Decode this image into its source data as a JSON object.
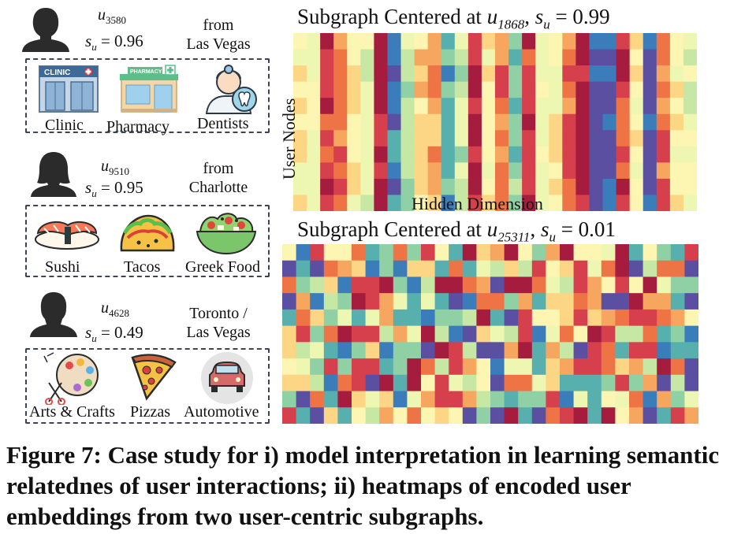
{
  "users": [
    {
      "id": "u",
      "sub": "3580",
      "score_label": "s",
      "score_sub": "u",
      "score_value": "= 0.96",
      "location": [
        "from",
        "Las Vegas"
      ],
      "categories": [
        {
          "label": "Clinic",
          "icon": "clinic-icon"
        },
        {
          "label": "Pharmacy",
          "icon": "pharmacy-icon"
        },
        {
          "label": "Dentists",
          "icon": "dentist-icon"
        }
      ]
    },
    {
      "id": "u",
      "sub": "9510",
      "score_label": "s",
      "score_sub": "u",
      "score_value": "= 0.95",
      "location": [
        "from",
        "Charlotte"
      ],
      "categories": [
        {
          "label": "Sushi",
          "icon": "sushi-icon"
        },
        {
          "label": "Tacos",
          "icon": "taco-icon"
        },
        {
          "label": "Greek Food",
          "icon": "greek-salad-icon"
        }
      ]
    },
    {
      "id": "u",
      "sub": "4628",
      "score_label": "s",
      "score_sub": "u",
      "score_value": "= 0.49",
      "location": [
        "Toronto /",
        "Las Vegas"
      ],
      "categories": [
        {
          "label": "Arts & Crafts",
          "icon": "palette-icon"
        },
        {
          "label": "Pizzas",
          "icon": "pizza-icon"
        },
        {
          "label": "Automotive",
          "icon": "car-icon"
        }
      ]
    }
  ],
  "heatmaps": [
    {
      "title_prefix": "Subgraph Centered at ",
      "node": "u",
      "node_sub": "1868",
      "sep": ", ",
      "score_label": "s",
      "score_sub": "u",
      "score_value": " = 0.99",
      "xlabel": "Hidden Dimension",
      "ylabel": "User Nodes",
      "rows": 11,
      "cols": 30,
      "pattern": "structured"
    },
    {
      "title_prefix": "Subgraph Centered at ",
      "node": "u",
      "node_sub": "25311",
      "sep": ", ",
      "score_label": "s",
      "score_sub": "u",
      "score_value": " = 0.01",
      "xlabel": "",
      "ylabel": "",
      "rows": 11,
      "cols": 30,
      "pattern": "random"
    }
  ],
  "colors": {
    "palette": [
      "#a51c3f",
      "#d6404d",
      "#ee7446",
      "#f6a65e",
      "#fcd585",
      "#fdf5b2",
      "#eef7b1",
      "#c6e8a4",
      "#8fd0a4",
      "#57b0ad",
      "#3a7dba",
      "#5a4fa1"
    ]
  },
  "caption": "Figure 7: Case study for i) model interpretation in learning semantic relatednes of user interactions; ii) heatmaps of encoded user embeddings from two user-centric subgraphs."
}
